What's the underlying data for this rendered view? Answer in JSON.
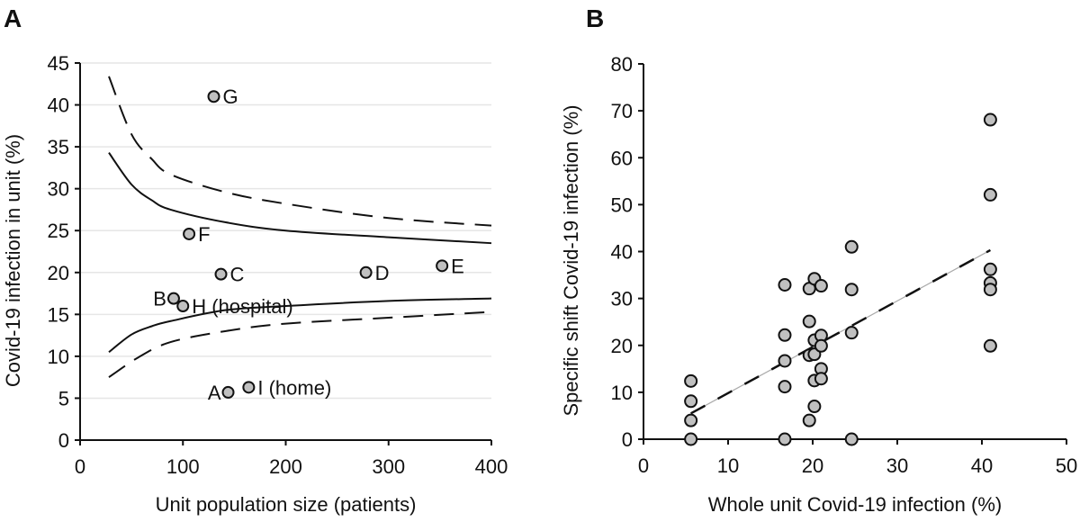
{
  "chart_data": [
    {
      "panel": "A",
      "type": "scatter",
      "xlabel": "Unit population size (patients)",
      "ylabel": "Covid-19 infection in unit (%)",
      "xlim": [
        0,
        400
      ],
      "ylim": [
        0,
        45
      ],
      "xticks": [
        0,
        100,
        200,
        300,
        400
      ],
      "yticks": [
        0,
        5,
        10,
        15,
        20,
        25,
        30,
        35,
        40,
        45
      ],
      "grid": "horizontal",
      "points": [
        {
          "label": "G",
          "x": 130,
          "y": 41.0,
          "label_side": "right"
        },
        {
          "label": "F",
          "x": 106,
          "y": 24.6,
          "label_side": "right"
        },
        {
          "label": "C",
          "x": 137,
          "y": 19.8,
          "label_side": "right"
        },
        {
          "label": "D",
          "x": 278,
          "y": 20.0,
          "label_side": "right"
        },
        {
          "label": "E",
          "x": 352,
          "y": 20.8,
          "label_side": "right"
        },
        {
          "label": "B",
          "x": 91,
          "y": 16.9,
          "label_side": "left"
        },
        {
          "label": "H (hospital)",
          "x": 100,
          "y": 16.0,
          "label_side": "right"
        },
        {
          "label": "A",
          "x": 144,
          "y": 5.7,
          "label_side": "left"
        },
        {
          "label": "I (home)",
          "x": 164,
          "y": 6.3,
          "label_side": "right"
        }
      ],
      "curves": [
        {
          "name": "upper-outer-limit",
          "style": "dashed",
          "x": [
            28,
            50,
            70,
            88,
            141,
            200,
            300,
            400
          ],
          "y": [
            43.4,
            36.5,
            33.5,
            31.7,
            29.6,
            28.2,
            26.5,
            25.6
          ]
        },
        {
          "name": "upper-inner-limit",
          "style": "solid",
          "x": [
            28,
            50,
            70,
            88,
            141,
            200,
            300,
            400
          ],
          "y": [
            34.3,
            30.5,
            28.6,
            27.5,
            26.0,
            25.0,
            24.2,
            23.5
          ]
        },
        {
          "name": "lower-inner-limit",
          "style": "solid",
          "x": [
            28,
            50,
            70,
            88,
            141,
            200,
            300,
            400
          ],
          "y": [
            10.5,
            12.6,
            13.6,
            14.2,
            15.5,
            16.0,
            16.6,
            16.9
          ]
        },
        {
          "name": "lower-outer-limit",
          "style": "dashed",
          "x": [
            28,
            57,
            88,
            141,
            200,
            300,
            400
          ],
          "y": [
            7.5,
            9.9,
            11.7,
            13.0,
            13.9,
            14.6,
            15.3
          ]
        }
      ]
    },
    {
      "panel": "B",
      "type": "scatter",
      "xlabel": "Whole unit Covid-19 infection (%)",
      "ylabel": "Specific shift Covid-19 infection (%)",
      "xlim": [
        0,
        50
      ],
      "ylim": [
        0,
        80
      ],
      "xticks": [
        0,
        10,
        20,
        30,
        40,
        50
      ],
      "yticks": [
        0,
        10,
        20,
        30,
        40,
        50,
        60,
        70,
        80
      ],
      "grid": "none",
      "points": [
        {
          "x": 5.6,
          "y": 12.4
        },
        {
          "x": 5.6,
          "y": 8.1
        },
        {
          "x": 5.6,
          "y": 4.0
        },
        {
          "x": 5.6,
          "y": 0
        },
        {
          "x": 16.7,
          "y": 32.9
        },
        {
          "x": 16.7,
          "y": 22.2
        },
        {
          "x": 16.7,
          "y": 16.7
        },
        {
          "x": 16.7,
          "y": 11.2
        },
        {
          "x": 16.7,
          "y": 0
        },
        {
          "x": 19.6,
          "y": 32.1
        },
        {
          "x": 19.6,
          "y": 25.1
        },
        {
          "x": 19.6,
          "y": 17.9
        },
        {
          "x": 19.6,
          "y": 4.0
        },
        {
          "x": 20.2,
          "y": 34.2
        },
        {
          "x": 20.2,
          "y": 21.1
        },
        {
          "x": 20.2,
          "y": 18.1
        },
        {
          "x": 20.2,
          "y": 12.5
        },
        {
          "x": 20.2,
          "y": 7.0
        },
        {
          "x": 21.0,
          "y": 32.7
        },
        {
          "x": 21.0,
          "y": 22.1
        },
        {
          "x": 21.0,
          "y": 19.9
        },
        {
          "x": 21.0,
          "y": 15.0
        },
        {
          "x": 21.0,
          "y": 12.9
        },
        {
          "x": 24.6,
          "y": 41.0
        },
        {
          "x": 24.6,
          "y": 31.9
        },
        {
          "x": 24.6,
          "y": 22.7
        },
        {
          "x": 24.6,
          "y": 0
        },
        {
          "x": 41.0,
          "y": 68.1
        },
        {
          "x": 41.0,
          "y": 52.1
        },
        {
          "x": 41.0,
          "y": 36.2
        },
        {
          "x": 41.0,
          "y": 33.3
        },
        {
          "x": 41.0,
          "y": 31.9
        },
        {
          "x": 41.0,
          "y": 19.9
        }
      ],
      "trendline": {
        "style": "dashed",
        "x": [
          5.6,
          41.0
        ],
        "y": [
          5.5,
          40.3
        ]
      }
    }
  ],
  "colors": {
    "point_fill": "#c0c0c0",
    "point_stroke": "#111111",
    "grid": "#e6e6e6",
    "axis": "#111111",
    "trend_thin": "#aaaaaa"
  }
}
